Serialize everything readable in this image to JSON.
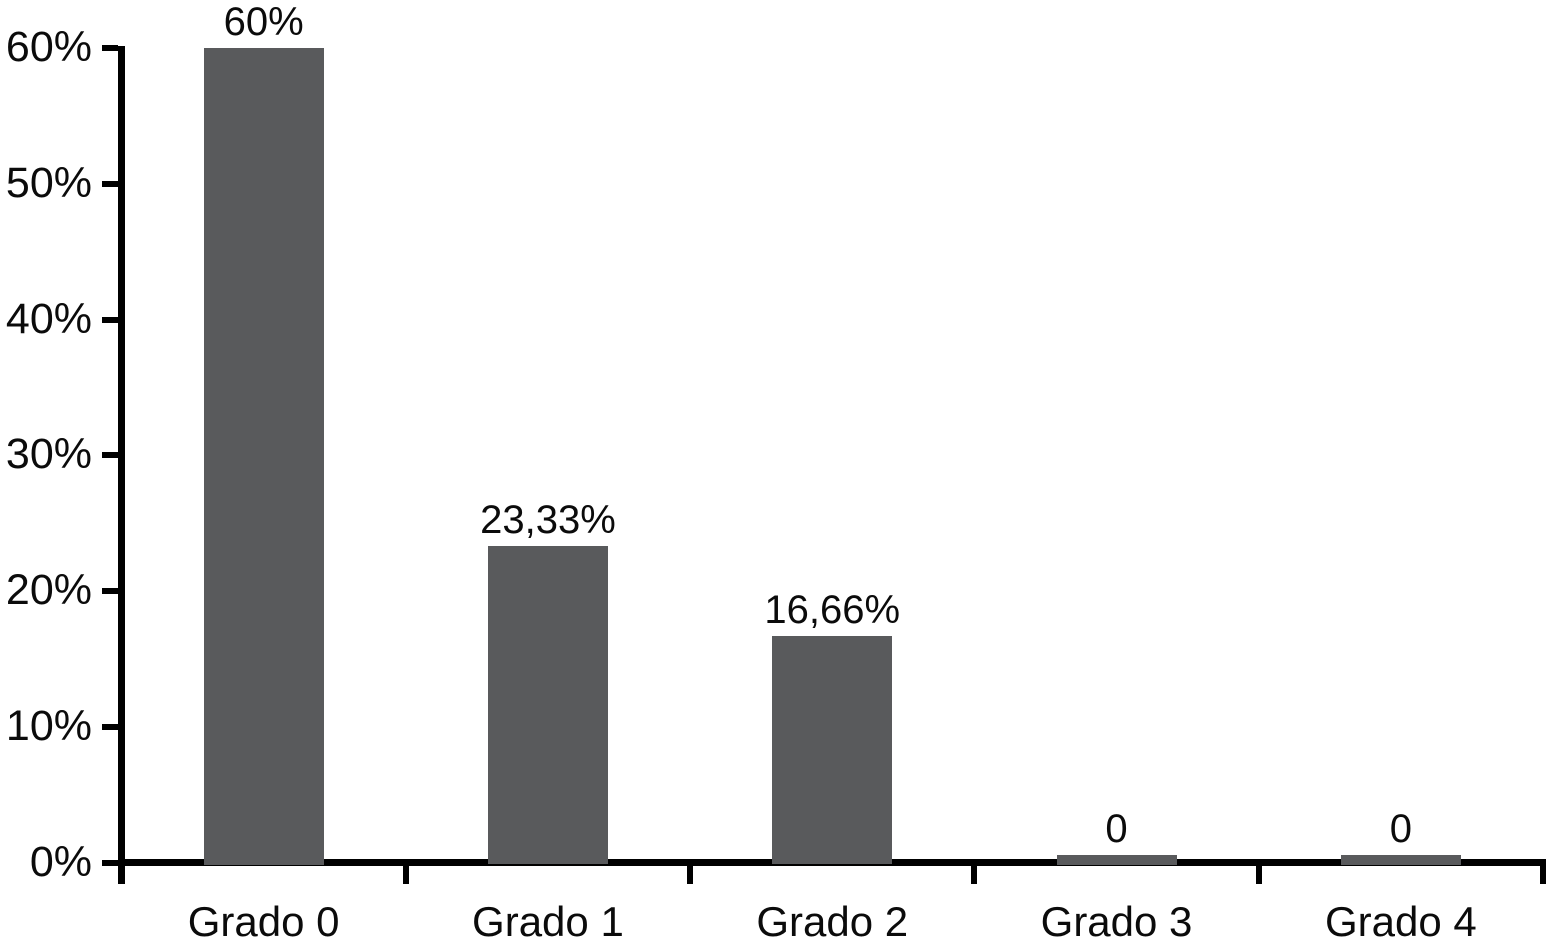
{
  "chart_data": {
    "type": "bar",
    "title": "",
    "xlabel": "",
    "ylabel": "",
    "categories": [
      "Grado 0",
      "Grado 1",
      "Grado 2",
      "Grado 3",
      "Grado 4"
    ],
    "values": [
      60,
      23.33,
      16.66,
      0,
      0
    ],
    "value_labels": [
      "60%",
      "23,33%",
      "16,66%",
      "0",
      "0"
    ],
    "y_ticks": [
      0,
      10,
      20,
      30,
      40,
      50,
      60
    ],
    "y_tick_labels": [
      "0%",
      "10%",
      "20%",
      "30%",
      "40%",
      "50%",
      "60%"
    ],
    "ylim": [
      0,
      60
    ],
    "grid": false,
    "legend": null,
    "colors": {
      "bar": "#595a5c",
      "axis": "#000000",
      "text": "#0b0b0b",
      "background": "#ffffff"
    }
  }
}
